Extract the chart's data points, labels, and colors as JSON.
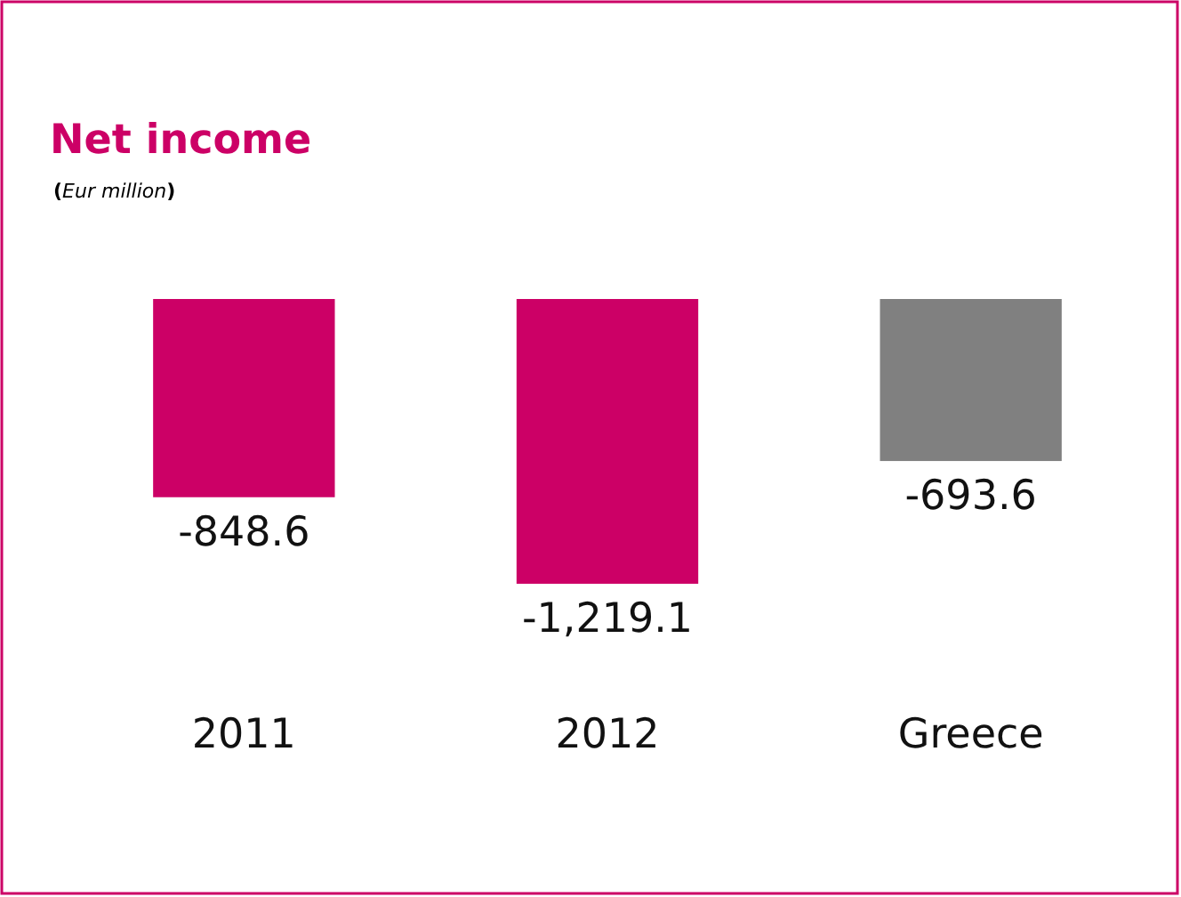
{
  "chart_data": {
    "type": "bar",
    "title": "Net income",
    "subtitle": "(Eur million)",
    "categories": [
      "2011",
      "2012",
      "Greece"
    ],
    "values": [
      -848.6,
      -1219.1,
      -693.6
    ],
    "value_labels": [
      "-848.6",
      "-1,219.1",
      "-693.6"
    ],
    "colors": [
      "#cc0066",
      "#cc0066",
      "#808080"
    ]
  }
}
